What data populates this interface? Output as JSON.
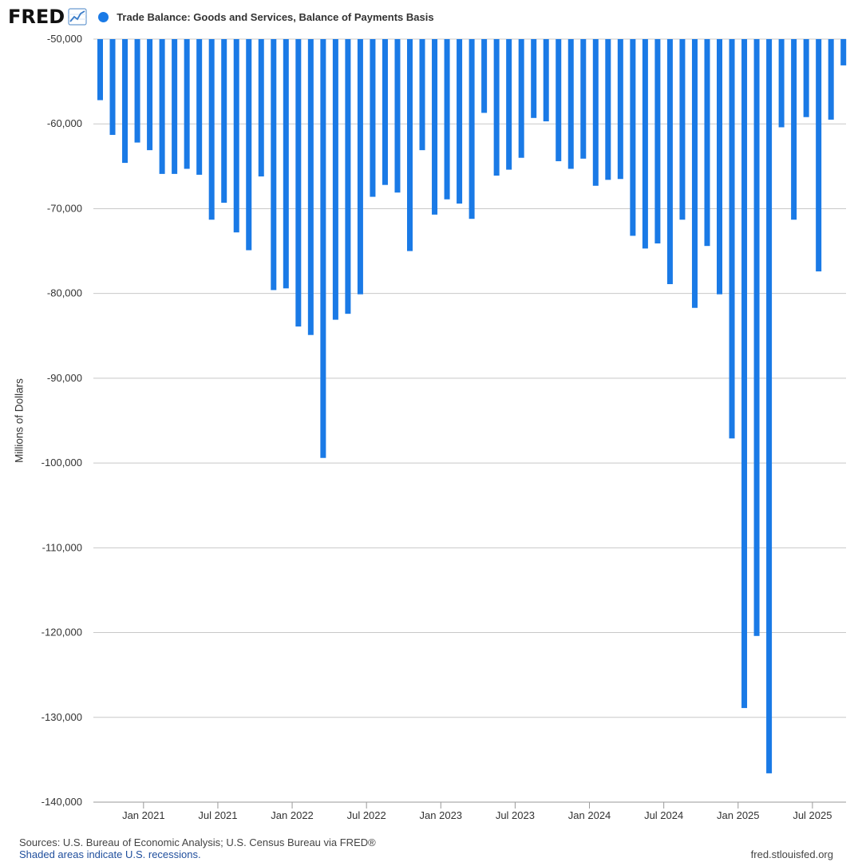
{
  "header": {
    "logo_text": "FRED",
    "logo_icon": "line-chart-icon",
    "series_label": "Trade Balance: Goods and Services, Balance of Payments Basis"
  },
  "colors": {
    "bar": "#1a7ae6",
    "grid": "#c8c8c8",
    "axis": "#9a9a9a",
    "note_link": "#1f4e9c"
  },
  "footer": {
    "sources": "Sources: U.S. Bureau of Economic Analysis; U.S. Census Bureau via FRED®",
    "note": "Shaded areas indicate U.S. recessions.",
    "site": "fred.stlouisfed.org"
  },
  "chart_data": {
    "type": "bar",
    "title": "Trade Balance: Goods and Services, Balance of Payments Basis",
    "xlabel": "",
    "ylabel": "Millions of Dollars",
    "ylim": [
      -140000,
      -50000
    ],
    "yticks": [
      -50000,
      -60000,
      -70000,
      -80000,
      -90000,
      -100000,
      -110000,
      -120000,
      -130000,
      -140000
    ],
    "ytick_labels": [
      "-50,000",
      "-60,000",
      "-70,000",
      "-80,000",
      "-90,000",
      "-100,000",
      "-110,000",
      "-120,000",
      "-130,000",
      "-140,000"
    ],
    "xtick_labels": [
      "Jan 2021",
      "Jul 2021",
      "Jan 2022",
      "Jul 2022",
      "Jan 2023",
      "Jul 2023",
      "Jan 2024",
      "Jul 2024",
      "Jan 2025",
      "Jul 2025"
    ],
    "xtick_months": [
      "2021-01",
      "2021-07",
      "2022-01",
      "2022-07",
      "2023-01",
      "2023-07",
      "2024-01",
      "2024-07",
      "2025-01",
      "2025-07"
    ],
    "grid": true,
    "legend": "top",
    "categories": [
      "2020-09",
      "2020-10",
      "2020-11",
      "2020-12",
      "2021-01",
      "2021-02",
      "2021-03",
      "2021-04",
      "2021-05",
      "2021-06",
      "2021-07",
      "2021-08",
      "2021-09",
      "2021-10",
      "2021-11",
      "2021-12",
      "2022-01",
      "2022-02",
      "2022-03",
      "2022-04",
      "2022-05",
      "2022-06",
      "2022-07",
      "2022-08",
      "2022-09",
      "2022-10",
      "2022-11",
      "2022-12",
      "2023-01",
      "2023-02",
      "2023-03",
      "2023-04",
      "2023-05",
      "2023-06",
      "2023-07",
      "2023-08",
      "2023-09",
      "2023-10",
      "2023-11",
      "2023-12",
      "2024-01",
      "2024-02",
      "2024-03",
      "2024-04",
      "2024-05",
      "2024-06",
      "2024-07",
      "2024-08",
      "2024-09",
      "2024-10",
      "2024-11",
      "2024-12",
      "2025-01",
      "2025-02",
      "2025-03",
      "2025-04",
      "2025-05",
      "2025-06",
      "2025-07",
      "2025-08",
      "2025-09"
    ],
    "series": [
      {
        "values": [
          -57200,
          -61300,
          -64600,
          -62200,
          -63100,
          -65900,
          -65900,
          -65300,
          -66000,
          -71300,
          -69300,
          -72800,
          -74900,
          -66200,
          -79600,
          -79400,
          -83900,
          -84900,
          -99400,
          -83100,
          -82400,
          -80100,
          -68600,
          -67200,
          -68100,
          -75000,
          -63100,
          -70700,
          -68900,
          -69400,
          -71200,
          -58700,
          -66100,
          -65400,
          -64000,
          -59300,
          -59700,
          -64400,
          -65300,
          -64100,
          -67300,
          -66600,
          -66500,
          -73200,
          -74700,
          -74100,
          -78900,
          -71300,
          -81700,
          -74400,
          -80100,
          -97100,
          -128900,
          -120400,
          -136600,
          -60400,
          -71300,
          -59200,
          -77400,
          -59500,
          -53100
        ]
      }
    ]
  }
}
